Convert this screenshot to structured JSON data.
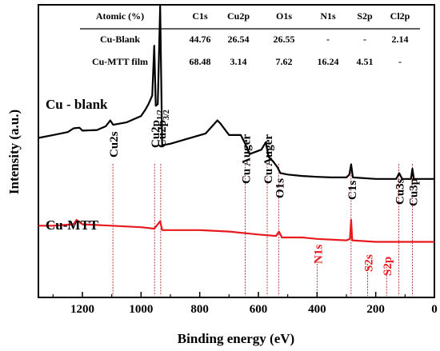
{
  "chart_data": {
    "type": "line",
    "xlabel": "Binding energy (eV)",
    "ylabel": "Intensity (a.u.)",
    "xlim": [
      1350,
      0
    ],
    "x_reversed": true,
    "x_ticks": [
      1200,
      1000,
      800,
      600,
      400,
      200,
      0
    ],
    "y_ticks_shown": false,
    "grid": false,
    "series": [
      {
        "name": "Cu - blank",
        "color": "#000000",
        "points": [
          [
            1350,
            0.545
          ],
          [
            1300,
            0.555
          ],
          [
            1250,
            0.565
          ],
          [
            1230,
            0.578
          ],
          [
            1210,
            0.58
          ],
          [
            1200,
            0.57
          ],
          [
            1150,
            0.572
          ],
          [
            1120,
            0.585
          ],
          [
            1105,
            0.605
          ],
          [
            1095,
            0.59
          ],
          [
            1050,
            0.598
          ],
          [
            1000,
            0.62
          ],
          [
            985,
            0.642
          ],
          [
            975,
            0.66
          ],
          [
            962,
            0.69
          ],
          [
            955,
            0.86
          ],
          [
            950,
            0.655
          ],
          [
            943,
            0.66
          ],
          [
            935,
            0.995
          ],
          [
            928,
            0.52
          ],
          [
            900,
            0.525
          ],
          [
            850,
            0.54
          ],
          [
            780,
            0.56
          ],
          [
            740,
            0.605
          ],
          [
            730,
            0.595
          ],
          [
            700,
            0.555
          ],
          [
            660,
            0.555
          ],
          [
            645,
            0.525
          ],
          [
            630,
            0.49
          ],
          [
            590,
            0.505
          ],
          [
            575,
            0.53
          ],
          [
            565,
            0.48
          ],
          [
            550,
            0.465
          ],
          [
            535,
            0.445
          ],
          [
            525,
            0.425
          ],
          [
            500,
            0.42
          ],
          [
            450,
            0.415
          ],
          [
            400,
            0.412
          ],
          [
            350,
            0.41
          ],
          [
            300,
            0.41
          ],
          [
            290,
            0.42
          ],
          [
            284,
            0.455
          ],
          [
            278,
            0.41
          ],
          [
            200,
            0.405
          ],
          [
            130,
            0.405
          ],
          [
            120,
            0.425
          ],
          [
            110,
            0.405
          ],
          [
            80,
            0.405
          ],
          [
            75,
            0.44
          ],
          [
            70,
            0.405
          ],
          [
            30,
            0.405
          ],
          [
            0,
            0.405
          ]
        ]
      },
      {
        "name": "Cu-MTT",
        "color": "#e8191e",
        "points": [
          [
            1350,
            0.245
          ],
          [
            1300,
            0.245
          ],
          [
            1230,
            0.25
          ],
          [
            1220,
            0.265
          ],
          [
            1200,
            0.25
          ],
          [
            1100,
            0.245
          ],
          [
            1000,
            0.24
          ],
          [
            955,
            0.235
          ],
          [
            935,
            0.26
          ],
          [
            928,
            0.23
          ],
          [
            800,
            0.23
          ],
          [
            700,
            0.225
          ],
          [
            600,
            0.215
          ],
          [
            540,
            0.21
          ],
          [
            530,
            0.225
          ],
          [
            520,
            0.205
          ],
          [
            450,
            0.205
          ],
          [
            400,
            0.2
          ],
          [
            300,
            0.195
          ],
          [
            288,
            0.2
          ],
          [
            284,
            0.265
          ],
          [
            280,
            0.195
          ],
          [
            200,
            0.19
          ],
          [
            100,
            0.19
          ],
          [
            0,
            0.19
          ]
        ]
      }
    ],
    "annotations": [
      {
        "text": "Cu2s",
        "x": 1096,
        "color": "#000000"
      },
      {
        "text": "Cu2p",
        "sub": "1/2",
        "x": 954,
        "color": "#000000"
      },
      {
        "text": "Cu2p",
        "sub": "3/2",
        "x": 933,
        "color": "#000000"
      },
      {
        "text": "Cu Auger",
        "x": 645,
        "color": "#000000"
      },
      {
        "text": "Cu Auger",
        "x": 570,
        "color": "#000000"
      },
      {
        "text": "O1s",
        "x": 531,
        "color": "#000000"
      },
      {
        "text": "C1s",
        "x": 284,
        "color": "#000000"
      },
      {
        "text": "Cu3s",
        "x": 121,
        "color": "#000000"
      },
      {
        "text": "Cu3p",
        "x": 75,
        "color": "#000000"
      },
      {
        "text": "N1s",
        "x": 400,
        "color": "#e8191e"
      },
      {
        "text": "S2s",
        "x": 228,
        "color": "#e8191e"
      },
      {
        "text": "S2p",
        "x": 163,
        "color": "#e8191e"
      }
    ],
    "series_labels": [
      {
        "text": "Cu - blank",
        "color": "#000000"
      },
      {
        "text": "Cu-MTT",
        "color": "#e8191e"
      }
    ],
    "table": {
      "headers": [
        "Atomic (%)",
        "C1s",
        "Cu2p",
        "O1s",
        "N1s",
        "S2p",
        "Cl2p"
      ],
      "rows": [
        [
          "Cu-Blank",
          "44.76",
          "26.54",
          "26.55",
          "-",
          "-",
          "2.14"
        ],
        [
          "Cu-MTT film",
          "68.48",
          "3.14",
          "7.62",
          "16.24",
          "4.51",
          "-"
        ]
      ]
    }
  }
}
